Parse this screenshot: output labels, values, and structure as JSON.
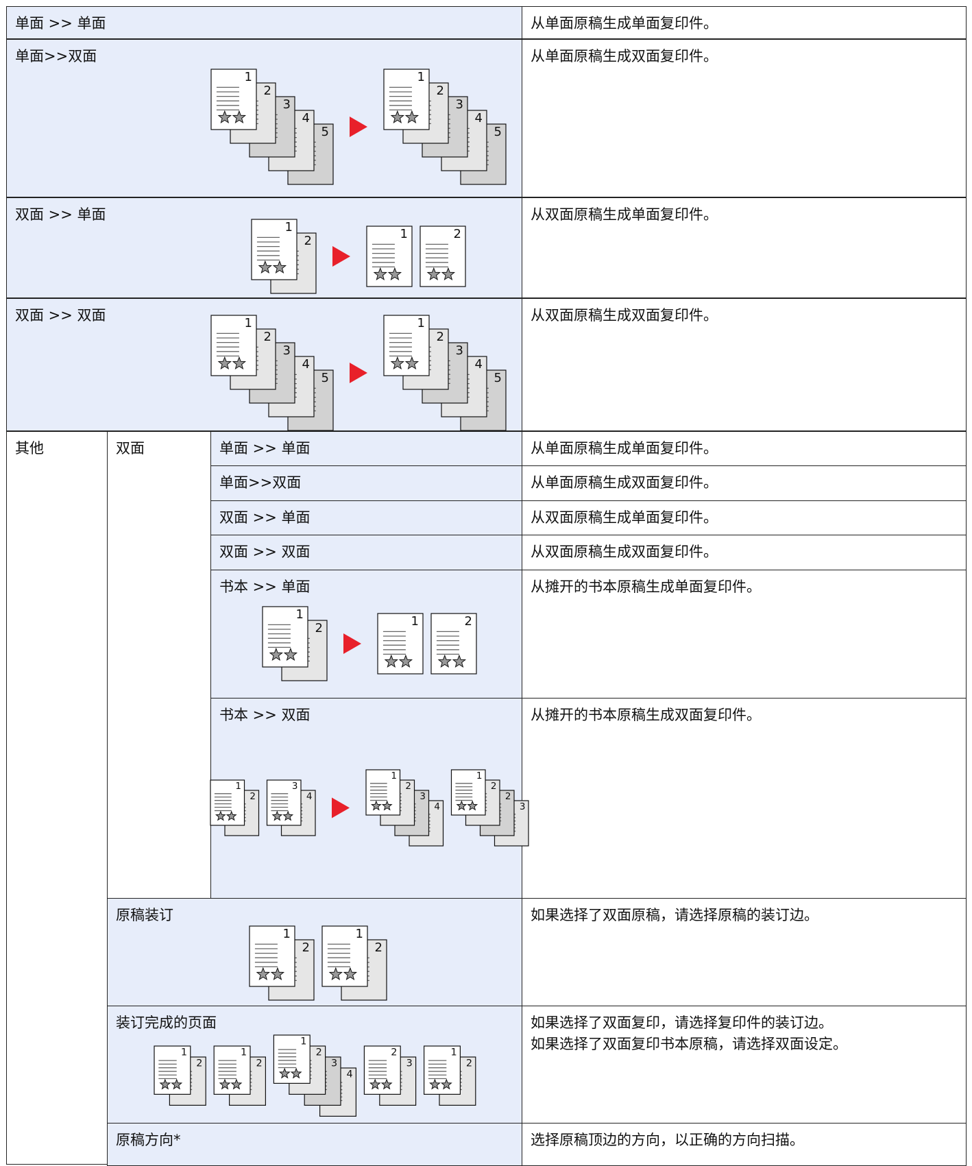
{
  "rows": [
    {
      "setting": "单面 >> 单面",
      "description": "从单面原稿生成单面复印件。"
    },
    {
      "setting": "单面>>双面",
      "description": "从单面原稿生成双面复印件。",
      "figure": {
        "before": [
          [
            "1",
            "2",
            "3",
            "4",
            "5"
          ]
        ],
        "after": [
          [
            "1",
            "2",
            "3",
            "4",
            "5"
          ]
        ]
      }
    },
    {
      "setting": "双面 >> 单面",
      "description": "从双面原稿生成单面复印件。",
      "figure": {
        "before": [
          [
            "1",
            "2"
          ]
        ],
        "after": [
          [
            "1"
          ],
          [
            "2"
          ]
        ]
      }
    },
    {
      "setting": "双面 >> 双面",
      "description": "从双面原稿生成双面复印件。",
      "figure": {
        "before": [
          [
            "1",
            "2",
            "3",
            "4",
            "5"
          ]
        ],
        "after": [
          [
            "1",
            "2",
            "3",
            "4",
            "5"
          ]
        ]
      }
    }
  ],
  "other": {
    "label": "其他",
    "group": {
      "label": "双面",
      "rows": [
        {
          "setting": "单面 >> 单面",
          "description": "从单面原稿生成单面复印件。"
        },
        {
          "setting": "单面>>双面",
          "description": "从单面原稿生成双面复印件。"
        },
        {
          "setting": "双面 >> 单面",
          "description": "从双面原稿生成单面复印件。"
        },
        {
          "setting": "双面 >> 双面",
          "description": "从双面原稿生成双面复印件。"
        },
        {
          "setting": "书本 >> 单面",
          "description": "从摊开的书本原稿生成单面复印件。",
          "figure": {
            "before": [
              [
                "1",
                "2"
              ]
            ],
            "after": [
              [
                "1"
              ],
              [
                "2"
              ]
            ]
          }
        },
        {
          "setting": "书本 >> 双面",
          "description": "从摊开的书本原稿生成双面复印件。",
          "figure": {
            "before": [
              [
                "1",
                "2"
              ],
              [
                "3",
                "4"
              ]
            ],
            "after": [
              [
                "1",
                "2",
                "3",
                "4"
              ],
              [
                "1",
                "2",
                "2",
                "3"
              ]
            ]
          }
        }
      ]
    },
    "rows": [
      {
        "setting": "原稿装订",
        "description": "如果选择了双面原稿，请选择原稿的装订边。",
        "figure": {
          "groups": [
            [
              "1",
              "2"
            ],
            [
              "1",
              "2"
            ]
          ]
        }
      },
      {
        "setting": "装订完成的页面",
        "description": [
          "如果选择了双面复印，请选择复印件的装订边。",
          "如果选择了双面复印书本原稿，请选择双面设定。"
        ],
        "figure": {
          "groups": [
            [
              "1",
              "2"
            ],
            [
              "1",
              "2"
            ],
            [
              "1",
              "2",
              "3",
              "4"
            ],
            [
              "2",
              "3"
            ],
            [
              "1",
              "2"
            ]
          ]
        }
      },
      {
        "setting": "原稿方向*",
        "description": "选择原稿顶边的方向，以正确的方向扫描。"
      }
    ]
  }
}
